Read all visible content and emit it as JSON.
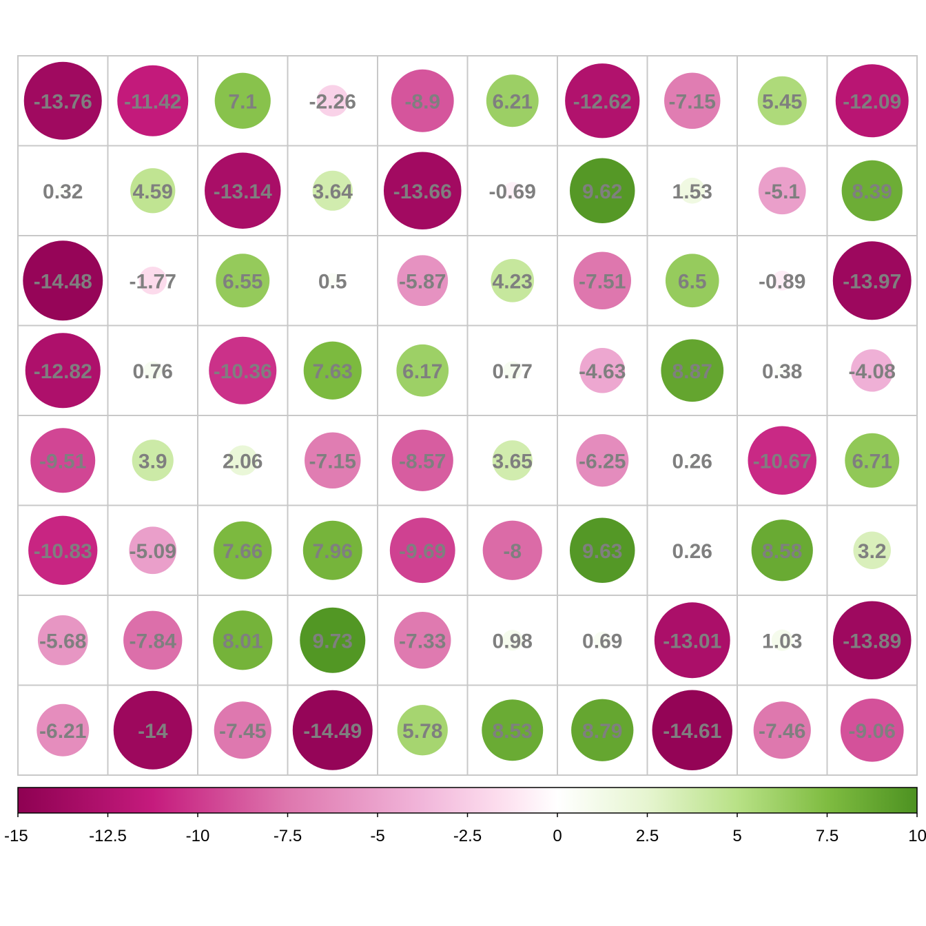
{
  "chart_data": {
    "type": "heatmap",
    "mark": "circle",
    "rows": 8,
    "cols": 10,
    "values": [
      [
        -13.76,
        -11.42,
        7.1,
        -2.26,
        -8.9,
        6.21,
        -12.62,
        -7.15,
        5.45,
        -12.09
      ],
      [
        0.32,
        4.59,
        -13.14,
        3.64,
        -13.66,
        -0.69,
        9.62,
        1.53,
        -5.1,
        8.39
      ],
      [
        -14.48,
        -1.77,
        6.55,
        0.5,
        -5.87,
        4.23,
        -7.51,
        6.5,
        -0.89,
        -13.97
      ],
      [
        -12.82,
        0.76,
        -10.36,
        7.63,
        6.17,
        0.77,
        -4.63,
        8.87,
        0.38,
        -4.08
      ],
      [
        -9.51,
        3.9,
        2.06,
        -7.15,
        -8.57,
        3.65,
        -6.25,
        0.26,
        -10.67,
        6.71
      ],
      [
        -10.83,
        -5.09,
        7.66,
        7.96,
        -9.69,
        -8,
        9.63,
        0.26,
        8.58,
        3.2
      ],
      [
        -5.68,
        -7.84,
        8.01,
        9.73,
        -7.33,
        0.98,
        0.69,
        -13.01,
        1.03,
        -13.89
      ],
      [
        -6.21,
        -14,
        -7.45,
        -14.49,
        5.78,
        8.53,
        8.79,
        -14.61,
        -7.46,
        -9.06
      ]
    ],
    "value_labels": [
      [
        "-13.76",
        "-11.42",
        "7.1",
        "-2.26",
        "-8.9",
        "6.21",
        "-12.62",
        "-7.15",
        "5.45",
        "-12.09"
      ],
      [
        "0.32",
        "4.59",
        "-13.14",
        "3.64",
        "-13.66",
        "-0.69",
        "9.62",
        "1.53",
        "-5.1",
        "8.39"
      ],
      [
        "-14.48",
        "-1.77",
        "6.55",
        "0.5",
        "-5.87",
        "4.23",
        "-7.51",
        "6.5",
        "-0.89",
        "-13.97"
      ],
      [
        "-12.82",
        "0.76",
        "-10.36",
        "7.63",
        "6.17",
        "0.77",
        "-4.63",
        "8.87",
        "0.38",
        "-4.08"
      ],
      [
        "-9.51",
        "3.9",
        "2.06",
        "-7.15",
        "-8.57",
        "3.65",
        "-6.25",
        "0.26",
        "-10.67",
        "6.71"
      ],
      [
        "-10.83",
        "-5.09",
        "7.66",
        "7.96",
        "-9.69",
        "-8",
        "9.63",
        "0.26",
        "8.58",
        "3.2"
      ],
      [
        "-5.68",
        "-7.84",
        "8.01",
        "9.73",
        "-7.33",
        "0.98",
        "0.69",
        "-13.01",
        "1.03",
        "-13.89"
      ],
      [
        "-6.21",
        "-14",
        "-7.45",
        "-14.49",
        "5.78",
        "8.53",
        "8.79",
        "-14.61",
        "-7.46",
        "-9.06"
      ]
    ],
    "colorbar": {
      "orientation": "horizontal",
      "placement": "bottom",
      "range": [
        -15,
        10
      ],
      "ticks": [
        -15,
        -12.5,
        -10,
        -7.5,
        -5,
        -2.5,
        0,
        2.5,
        5,
        7.5,
        10
      ],
      "tick_labels": [
        "-15",
        "-12.5",
        "-10",
        "-7.5",
        "-5",
        "-2.5",
        "0",
        "2.5",
        "5",
        "7.5",
        "10"
      ]
    },
    "color_scale": [
      {
        "value": -15,
        "color": "#8e0152"
      },
      {
        "value": -11.25,
        "color": "#c51b7d"
      },
      {
        "value": -7.5,
        "color": "#de77ae"
      },
      {
        "value": -3.75,
        "color": "#f1b6da"
      },
      {
        "value": -1.5,
        "color": "#fde0ef"
      },
      {
        "value": 0,
        "color": "#ffffff"
      },
      {
        "value": 2.5,
        "color": "#e6f5d0"
      },
      {
        "value": 5,
        "color": "#b8e186"
      },
      {
        "value": 7.5,
        "color": "#7fbc41"
      },
      {
        "value": 10,
        "color": "#4d9221"
      }
    ],
    "grid": true,
    "grid_color": "#c8c8c8",
    "label_color": "#7f7f7f"
  }
}
